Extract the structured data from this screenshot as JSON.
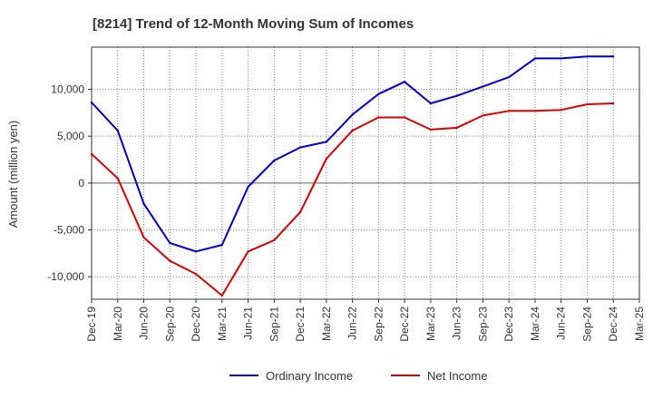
{
  "chart_data": {
    "type": "line",
    "title": "[8214]  Trend of 12-Month Moving Sum of Incomes",
    "xlabel": "",
    "ylabel": "Amount (million yen)",
    "categories": [
      "Dec-19",
      "Mar-20",
      "Jun-20",
      "Sep-20",
      "Dec-20",
      "Mar-21",
      "Jun-21",
      "Sep-21",
      "Dec-21",
      "Mar-22",
      "Jun-22",
      "Sep-22",
      "Dec-22",
      "Mar-23",
      "Jun-23",
      "Sep-23",
      "Dec-23",
      "Mar-24",
      "Jun-24",
      "Sep-24",
      "Dec-24",
      "Mar-25"
    ],
    "y_ticks": [
      -10000,
      -5000,
      0,
      5000,
      10000
    ],
    "y_tick_labels": [
      "-10,000",
      "-5,000",
      "0",
      "5,000",
      "10,000"
    ],
    "ylim": [
      -12400,
      14500
    ],
    "grid": true,
    "legend_position": "bottom",
    "series": [
      {
        "name": "Ordinary Income",
        "color": "#0000cc",
        "values": [
          8600,
          5600,
          -2200,
          -6400,
          -7300,
          -6600,
          -400,
          2400,
          3800,
          4400,
          7300,
          9500,
          10800,
          8500,
          9300,
          10300,
          11300,
          13300,
          13300,
          13500,
          13500,
          null
        ]
      },
      {
        "name": "Net Income",
        "color": "#dd0000",
        "values": [
          3100,
          500,
          -5800,
          -8300,
          -9700,
          -12000,
          -7300,
          -6100,
          -3100,
          2600,
          5600,
          7000,
          7000,
          5700,
          5900,
          7200,
          7700,
          7700,
          7800,
          8400,
          8500,
          null
        ]
      }
    ]
  }
}
